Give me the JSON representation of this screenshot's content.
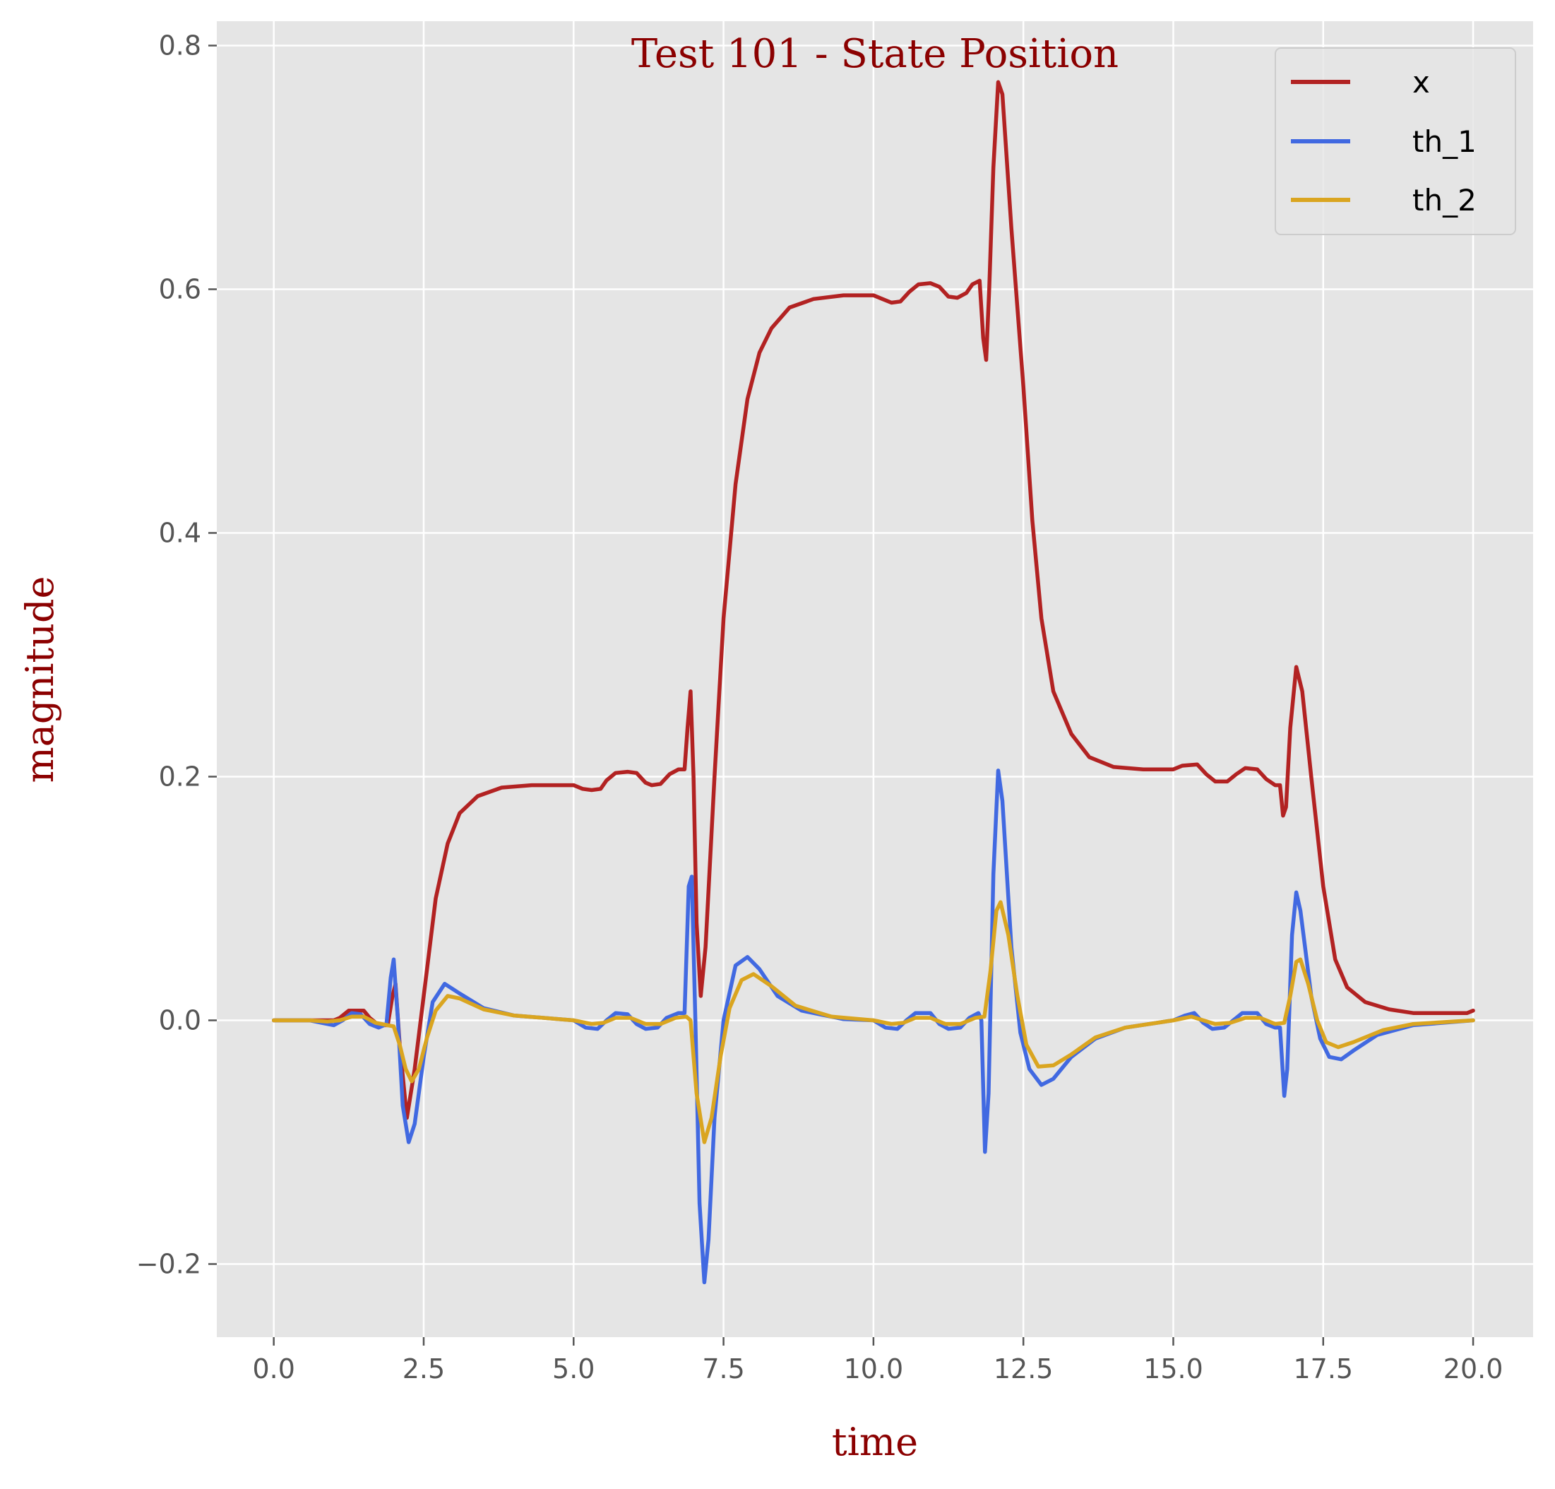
{
  "chart_data": {
    "type": "line",
    "title": "Test 101 - State Position",
    "xlabel": "time",
    "ylabel": "magnitude",
    "xlim": [
      -0.95,
      21.0
    ],
    "ylim": [
      -0.26,
      0.82
    ],
    "x_ticks": [
      0.0,
      2.5,
      5.0,
      7.5,
      10.0,
      12.5,
      15.0,
      17.5,
      20.0
    ],
    "x_tick_labels": [
      "0.0",
      "2.5",
      "5.0",
      "7.5",
      "10.0",
      "12.5",
      "15.0",
      "17.5",
      "20.0"
    ],
    "y_ticks": [
      -0.2,
      0.0,
      0.2,
      0.4,
      0.6,
      0.8
    ],
    "y_tick_labels": [
      "−0.2",
      "0.0",
      "0.2",
      "0.4",
      "0.6",
      "0.8"
    ],
    "grid": true,
    "legend_position": "top-right",
    "background_color": "#e5e5e5",
    "series": [
      {
        "name": "x",
        "color": "#b22222",
        "points": [
          [
            0.0,
            0.0
          ],
          [
            0.6,
            0.0
          ],
          [
            1.0,
            0.0
          ],
          [
            1.1,
            0.002
          ],
          [
            1.25,
            0.008
          ],
          [
            1.5,
            0.008
          ],
          [
            1.6,
            0.002
          ],
          [
            1.75,
            -0.004
          ],
          [
            1.9,
            -0.004
          ],
          [
            1.98,
            0.02
          ],
          [
            2.03,
            0.03
          ],
          [
            2.1,
            -0.02
          ],
          [
            2.22,
            -0.08
          ],
          [
            2.35,
            -0.04
          ],
          [
            2.5,
            0.02
          ],
          [
            2.7,
            0.1
          ],
          [
            2.9,
            0.145
          ],
          [
            3.1,
            0.17
          ],
          [
            3.4,
            0.184
          ],
          [
            3.8,
            0.191
          ],
          [
            4.3,
            0.193
          ],
          [
            5.0,
            0.193
          ],
          [
            5.15,
            0.19
          ],
          [
            5.3,
            0.189
          ],
          [
            5.45,
            0.19
          ],
          [
            5.55,
            0.197
          ],
          [
            5.7,
            0.203
          ],
          [
            5.9,
            0.204
          ],
          [
            6.05,
            0.203
          ],
          [
            6.2,
            0.195
          ],
          [
            6.3,
            0.193
          ],
          [
            6.45,
            0.194
          ],
          [
            6.6,
            0.202
          ],
          [
            6.75,
            0.206
          ],
          [
            6.85,
            0.206
          ],
          [
            6.9,
            0.24
          ],
          [
            6.95,
            0.27
          ],
          [
            7.0,
            0.2
          ],
          [
            7.05,
            0.08
          ],
          [
            7.12,
            0.02
          ],
          [
            7.2,
            0.06
          ],
          [
            7.35,
            0.2
          ],
          [
            7.5,
            0.33
          ],
          [
            7.7,
            0.44
          ],
          [
            7.9,
            0.51
          ],
          [
            8.1,
            0.548
          ],
          [
            8.3,
            0.568
          ],
          [
            8.6,
            0.585
          ],
          [
            9.0,
            0.592
          ],
          [
            9.5,
            0.595
          ],
          [
            10.0,
            0.595
          ],
          [
            10.15,
            0.592
          ],
          [
            10.3,
            0.589
          ],
          [
            10.45,
            0.59
          ],
          [
            10.6,
            0.598
          ],
          [
            10.75,
            0.604
          ],
          [
            10.95,
            0.605
          ],
          [
            11.1,
            0.602
          ],
          [
            11.25,
            0.594
          ],
          [
            11.4,
            0.593
          ],
          [
            11.55,
            0.597
          ],
          [
            11.65,
            0.604
          ],
          [
            11.77,
            0.607
          ],
          [
            11.83,
            0.56
          ],
          [
            11.88,
            0.542
          ],
          [
            11.93,
            0.6
          ],
          [
            12.0,
            0.7
          ],
          [
            12.08,
            0.77
          ],
          [
            12.15,
            0.76
          ],
          [
            12.3,
            0.65
          ],
          [
            12.5,
            0.52
          ],
          [
            12.65,
            0.41
          ],
          [
            12.8,
            0.33
          ],
          [
            13.0,
            0.27
          ],
          [
            13.3,
            0.235
          ],
          [
            13.6,
            0.216
          ],
          [
            14.0,
            0.208
          ],
          [
            14.5,
            0.206
          ],
          [
            15.0,
            0.206
          ],
          [
            15.15,
            0.209
          ],
          [
            15.4,
            0.21
          ],
          [
            15.55,
            0.202
          ],
          [
            15.7,
            0.196
          ],
          [
            15.9,
            0.196
          ],
          [
            16.05,
            0.202
          ],
          [
            16.2,
            0.207
          ],
          [
            16.4,
            0.206
          ],
          [
            16.55,
            0.198
          ],
          [
            16.7,
            0.193
          ],
          [
            16.78,
            0.193
          ],
          [
            16.83,
            0.168
          ],
          [
            16.88,
            0.175
          ],
          [
            16.95,
            0.24
          ],
          [
            17.05,
            0.29
          ],
          [
            17.15,
            0.27
          ],
          [
            17.3,
            0.2
          ],
          [
            17.5,
            0.11
          ],
          [
            17.7,
            0.05
          ],
          [
            17.9,
            0.027
          ],
          [
            18.2,
            0.015
          ],
          [
            18.6,
            0.009
          ],
          [
            19.0,
            0.006
          ],
          [
            19.5,
            0.006
          ],
          [
            19.9,
            0.006
          ],
          [
            20.0,
            0.008
          ]
        ]
      },
      {
        "name": "th_1",
        "color": "#4169e1",
        "points": [
          [
            0.0,
            0.0
          ],
          [
            0.6,
            0.0
          ],
          [
            0.8,
            -0.002
          ],
          [
            1.0,
            -0.004
          ],
          [
            1.15,
            0.0
          ],
          [
            1.3,
            0.006
          ],
          [
            1.45,
            0.005
          ],
          [
            1.6,
            -0.003
          ],
          [
            1.75,
            -0.006
          ],
          [
            1.88,
            -0.003
          ],
          [
            1.95,
            0.035
          ],
          [
            2.0,
            0.05
          ],
          [
            2.07,
            0.0
          ],
          [
            2.15,
            -0.07
          ],
          [
            2.25,
            -0.1
          ],
          [
            2.35,
            -0.085
          ],
          [
            2.5,
            -0.03
          ],
          [
            2.65,
            0.015
          ],
          [
            2.85,
            0.03
          ],
          [
            3.1,
            0.022
          ],
          [
            3.5,
            0.01
          ],
          [
            4.0,
            0.004
          ],
          [
            5.0,
            0.0
          ],
          [
            5.2,
            -0.006
          ],
          [
            5.4,
            -0.007
          ],
          [
            5.55,
            0.0
          ],
          [
            5.7,
            0.006
          ],
          [
            5.9,
            0.005
          ],
          [
            6.05,
            -0.003
          ],
          [
            6.2,
            -0.007
          ],
          [
            6.4,
            -0.006
          ],
          [
            6.55,
            0.002
          ],
          [
            6.75,
            0.006
          ],
          [
            6.85,
            0.006
          ],
          [
            6.92,
            0.11
          ],
          [
            6.97,
            0.118
          ],
          [
            7.03,
            0.0
          ],
          [
            7.1,
            -0.15
          ],
          [
            7.18,
            -0.215
          ],
          [
            7.25,
            -0.18
          ],
          [
            7.35,
            -0.08
          ],
          [
            7.5,
            0.0
          ],
          [
            7.7,
            0.045
          ],
          [
            7.9,
            0.052
          ],
          [
            8.1,
            0.042
          ],
          [
            8.4,
            0.02
          ],
          [
            8.8,
            0.008
          ],
          [
            9.5,
            0.001
          ],
          [
            10.0,
            0.0
          ],
          [
            10.2,
            -0.006
          ],
          [
            10.4,
            -0.007
          ],
          [
            10.55,
            0.0
          ],
          [
            10.7,
            0.006
          ],
          [
            10.95,
            0.006
          ],
          [
            11.1,
            -0.003
          ],
          [
            11.25,
            -0.007
          ],
          [
            11.45,
            -0.006
          ],
          [
            11.6,
            0.002
          ],
          [
            11.75,
            0.006
          ],
          [
            11.8,
            0.0
          ],
          [
            11.86,
            -0.108
          ],
          [
            11.92,
            -0.06
          ],
          [
            12.0,
            0.12
          ],
          [
            12.08,
            0.205
          ],
          [
            12.15,
            0.18
          ],
          [
            12.3,
            0.06
          ],
          [
            12.45,
            -0.01
          ],
          [
            12.6,
            -0.04
          ],
          [
            12.8,
            -0.053
          ],
          [
            13.0,
            -0.048
          ],
          [
            13.3,
            -0.03
          ],
          [
            13.7,
            -0.015
          ],
          [
            14.2,
            -0.006
          ],
          [
            15.0,
            0.0
          ],
          [
            15.2,
            0.004
          ],
          [
            15.35,
            0.006
          ],
          [
            15.5,
            -0.002
          ],
          [
            15.65,
            -0.007
          ],
          [
            15.85,
            -0.006
          ],
          [
            16.0,
            0.0
          ],
          [
            16.15,
            0.006
          ],
          [
            16.4,
            0.006
          ],
          [
            16.55,
            -0.003
          ],
          [
            16.7,
            -0.006
          ],
          [
            16.78,
            -0.006
          ],
          [
            16.85,
            -0.062
          ],
          [
            16.9,
            -0.04
          ],
          [
            16.98,
            0.07
          ],
          [
            17.05,
            0.105
          ],
          [
            17.12,
            0.09
          ],
          [
            17.3,
            0.02
          ],
          [
            17.45,
            -0.015
          ],
          [
            17.6,
            -0.03
          ],
          [
            17.8,
            -0.032
          ],
          [
            18.0,
            -0.025
          ],
          [
            18.4,
            -0.012
          ],
          [
            19.0,
            -0.004
          ],
          [
            20.0,
            0.0
          ]
        ]
      },
      {
        "name": "th_2",
        "color": "#daa520",
        "points": [
          [
            0.0,
            0.0
          ],
          [
            0.6,
            0.0
          ],
          [
            0.9,
            -0.001
          ],
          [
            1.1,
            0.0
          ],
          [
            1.3,
            0.003
          ],
          [
            1.5,
            0.003
          ],
          [
            1.7,
            -0.002
          ],
          [
            1.9,
            -0.004
          ],
          [
            2.0,
            -0.005
          ],
          [
            2.1,
            -0.02
          ],
          [
            2.2,
            -0.04
          ],
          [
            2.3,
            -0.05
          ],
          [
            2.42,
            -0.04
          ],
          [
            2.55,
            -0.015
          ],
          [
            2.7,
            0.008
          ],
          [
            2.9,
            0.02
          ],
          [
            3.1,
            0.018
          ],
          [
            3.5,
            0.009
          ],
          [
            4.0,
            0.004
          ],
          [
            5.0,
            0.0
          ],
          [
            5.3,
            -0.003
          ],
          [
            5.5,
            -0.002
          ],
          [
            5.7,
            0.002
          ],
          [
            5.95,
            0.002
          ],
          [
            6.2,
            -0.003
          ],
          [
            6.45,
            -0.003
          ],
          [
            6.7,
            0.002
          ],
          [
            6.88,
            0.003
          ],
          [
            6.95,
            0.0
          ],
          [
            7.05,
            -0.06
          ],
          [
            7.18,
            -0.1
          ],
          [
            7.3,
            -0.08
          ],
          [
            7.45,
            -0.03
          ],
          [
            7.6,
            0.01
          ],
          [
            7.8,
            0.033
          ],
          [
            8.0,
            0.038
          ],
          [
            8.3,
            0.028
          ],
          [
            8.7,
            0.012
          ],
          [
            9.3,
            0.003
          ],
          [
            10.0,
            0.0
          ],
          [
            10.3,
            -0.003
          ],
          [
            10.5,
            -0.002
          ],
          [
            10.7,
            0.002
          ],
          [
            10.95,
            0.002
          ],
          [
            11.2,
            -0.003
          ],
          [
            11.45,
            -0.003
          ],
          [
            11.7,
            0.002
          ],
          [
            11.85,
            0.003
          ],
          [
            11.95,
            0.04
          ],
          [
            12.05,
            0.09
          ],
          [
            12.12,
            0.097
          ],
          [
            12.25,
            0.07
          ],
          [
            12.4,
            0.02
          ],
          [
            12.55,
            -0.02
          ],
          [
            12.75,
            -0.038
          ],
          [
            13.0,
            -0.037
          ],
          [
            13.3,
            -0.028
          ],
          [
            13.7,
            -0.014
          ],
          [
            14.2,
            -0.006
          ],
          [
            15.0,
            0.0
          ],
          [
            15.3,
            0.003
          ],
          [
            15.5,
            0.0
          ],
          [
            15.7,
            -0.003
          ],
          [
            15.95,
            -0.002
          ],
          [
            16.2,
            0.002
          ],
          [
            16.45,
            0.002
          ],
          [
            16.7,
            -0.003
          ],
          [
            16.85,
            -0.002
          ],
          [
            16.95,
            0.02
          ],
          [
            17.05,
            0.048
          ],
          [
            17.12,
            0.05
          ],
          [
            17.25,
            0.03
          ],
          [
            17.4,
            0.0
          ],
          [
            17.55,
            -0.018
          ],
          [
            17.75,
            -0.022
          ],
          [
            18.0,
            -0.018
          ],
          [
            18.5,
            -0.008
          ],
          [
            19.0,
            -0.003
          ],
          [
            20.0,
            0.0
          ]
        ]
      }
    ]
  }
}
